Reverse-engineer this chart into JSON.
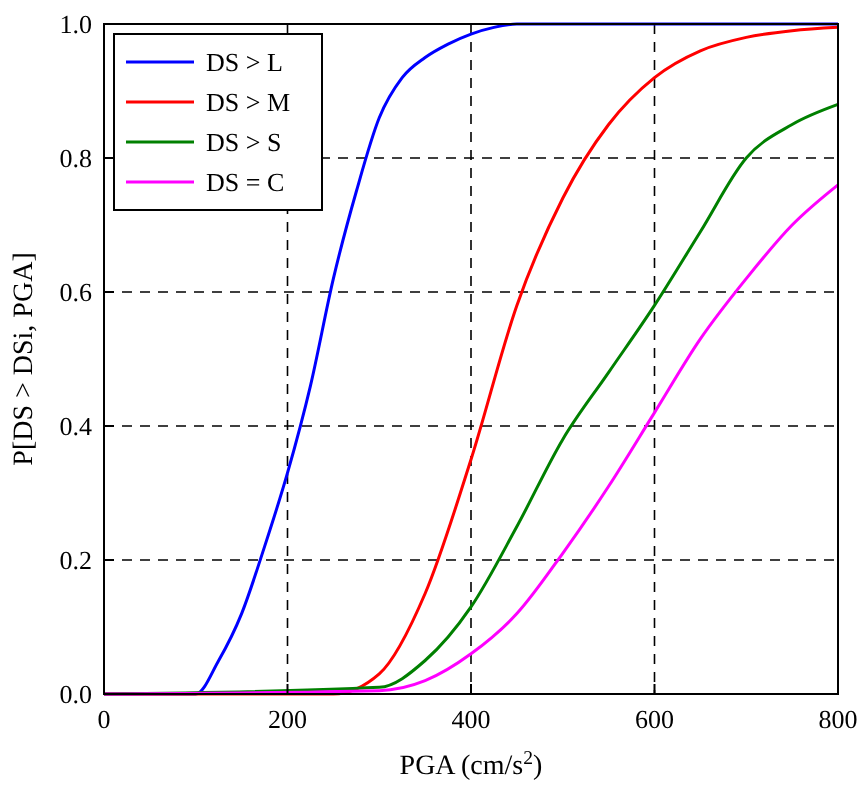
{
  "chart_data": {
    "type": "line",
    "xlabel": "PGA (cm/s$^{2}$)",
    "ylabel": "P[DS > DSi, PGA]",
    "xlim": [
      0,
      800
    ],
    "xticks": [
      0,
      200,
      400,
      600,
      800
    ],
    "ylim": [
      0,
      1
    ],
    "yticks": [
      {
        "value": 0,
        "label": "0.0"
      },
      {
        "value": 0.2,
        "label": "0.2"
      },
      {
        "value": 0.4,
        "label": "0.4"
      },
      {
        "value": 0.6,
        "label": "0.6"
      },
      {
        "value": 0.8,
        "label": "0.8"
      },
      {
        "value": 1,
        "label": "1.0"
      }
    ],
    "grid": true,
    "legend": "top left",
    "line_style": "solid",
    "marker": "none",
    "series": [
      {
        "name": "DS > L",
        "color": "#0000ff",
        "x": [
          0,
          100,
          125,
          150,
          175,
          200,
          225,
          250,
          275,
          300,
          325,
          350,
          375,
          400,
          425,
          450,
          500,
          600,
          700,
          800
        ],
        "values": [
          0,
          0,
          0.05,
          0.12,
          0.22,
          0.33,
          0.46,
          0.62,
          0.75,
          0.86,
          0.92,
          0.95,
          0.97,
          0.985,
          0.995,
          1,
          1,
          1,
          1,
          1
        ]
      },
      {
        "name": "DS > M",
        "color": "#ff0000",
        "x": [
          0,
          250,
          300,
          350,
          400,
          450,
          500,
          550,
          600,
          650,
          700,
          750,
          800
        ],
        "values": [
          0,
          0,
          0.03,
          0.15,
          0.35,
          0.58,
          0.74,
          0.85,
          0.92,
          0.96,
          0.98,
          0.99,
          0.995
        ]
      },
      {
        "name": "DS > S",
        "color": "#008000",
        "x": [
          0,
          300,
          350,
          400,
          450,
          500,
          550,
          600,
          650,
          700,
          750,
          800
        ],
        "values": [
          0,
          0.01,
          0.05,
          0.13,
          0.25,
          0.38,
          0.48,
          0.58,
          0.69,
          0.8,
          0.85,
          0.88
        ]
      },
      {
        "name": "DS = C",
        "color": "#ff00ff",
        "x": [
          0,
          300,
          350,
          400,
          450,
          500,
          550,
          600,
          650,
          700,
          750,
          800
        ],
        "values": [
          0,
          0.005,
          0.02,
          0.06,
          0.12,
          0.21,
          0.31,
          0.42,
          0.53,
          0.62,
          0.7,
          0.76
        ]
      }
    ]
  }
}
